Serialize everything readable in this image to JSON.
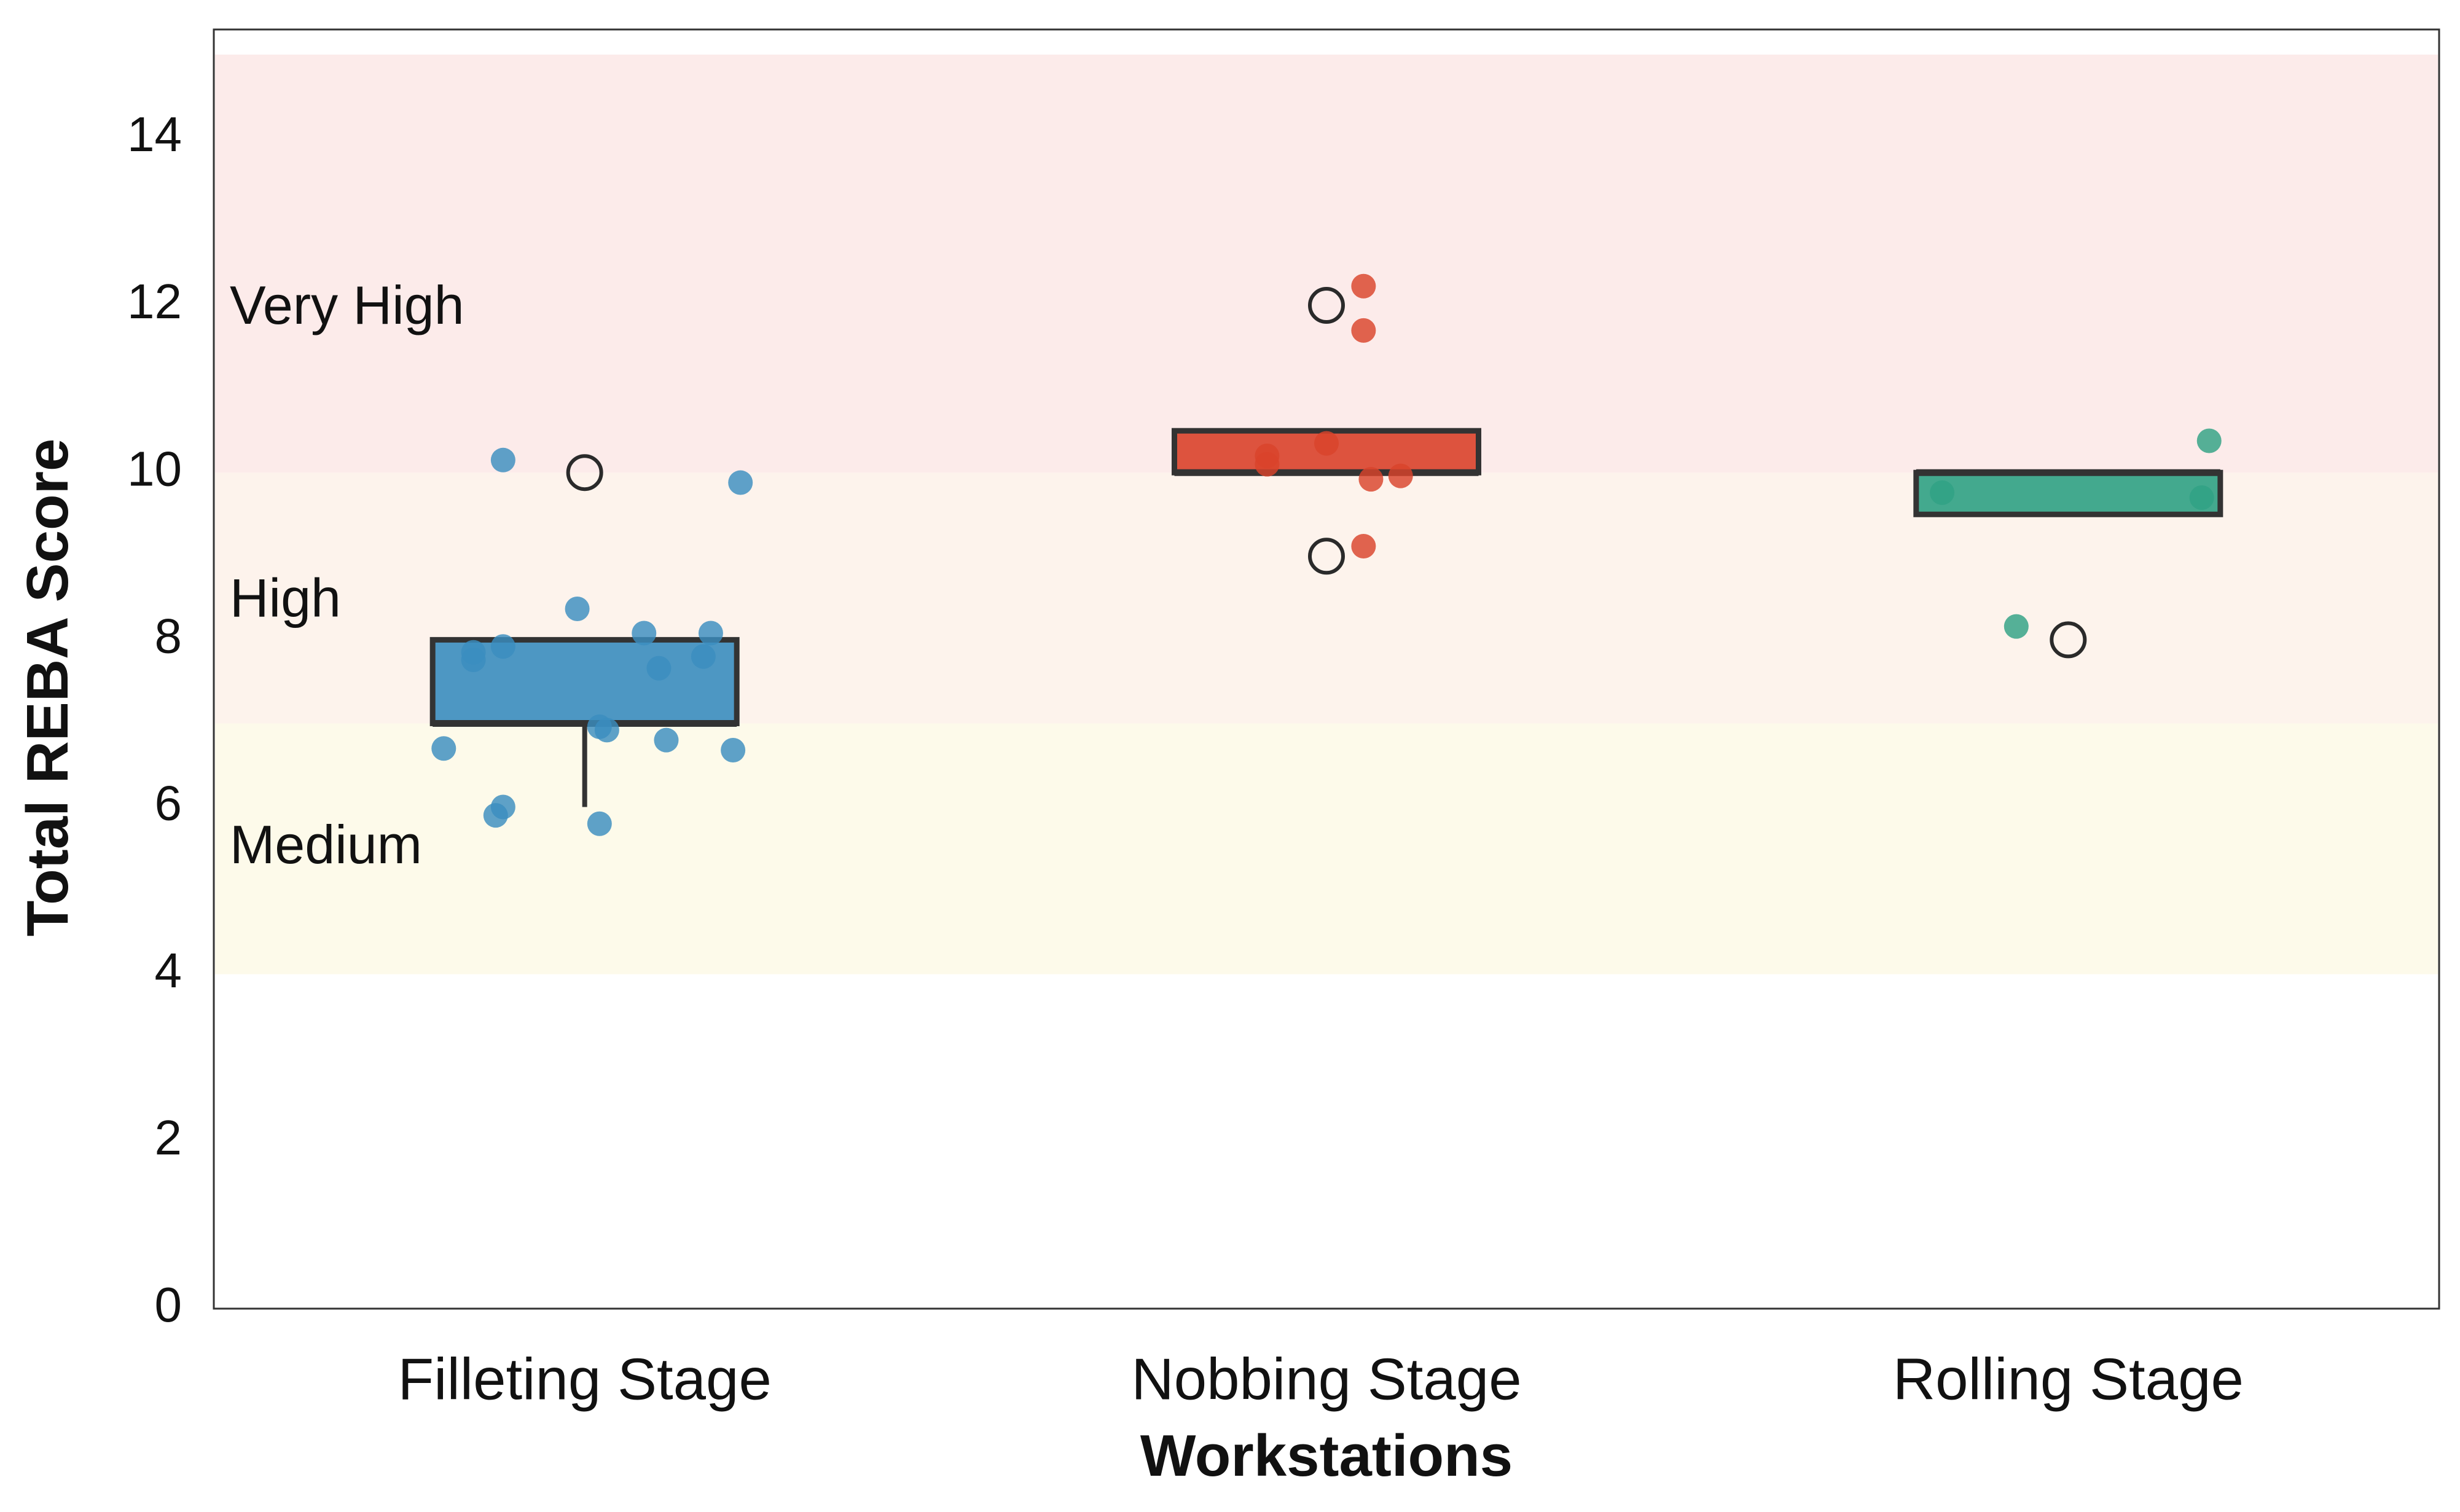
{
  "chart_data": {
    "type": "box",
    "xlabel": "Workstations",
    "ylabel": "Total REBA Score",
    "ylim": [
      0,
      15.3
    ],
    "yticks": [
      0,
      2,
      4,
      6,
      8,
      10,
      12,
      14
    ],
    "grid": false,
    "categories": [
      "Filleting Stage",
      "Nobbing Stage",
      "Rolling Stage"
    ],
    "zones": [
      {
        "label": "Medium",
        "from": 4,
        "to": 7,
        "color": "#fdfaea",
        "label_y": 5.5
      },
      {
        "label": "High",
        "from": 7,
        "to": 10,
        "color": "#fdf3ec",
        "label_y": 8.45
      },
      {
        "label": "Very High",
        "from": 10,
        "to": 15,
        "color": "#fcebea",
        "label_y": 11.95
      }
    ],
    "series": [
      {
        "category": "Filleting Stage",
        "color": "#3a8dbf",
        "box": {
          "q1": 7,
          "median": 7,
          "q3": 8,
          "whisker_low": 6,
          "whisker_high": 8
        },
        "outliers": [
          10
        ],
        "points": [
          {
            "dx": -0.11,
            "y": 10.15
          },
          {
            "dx": 0.21,
            "y": 9.88
          },
          {
            "dx": -0.01,
            "y": 8.37
          },
          {
            "dx": 0.08,
            "y": 8.08
          },
          {
            "dx": 0.17,
            "y": 8.08
          },
          {
            "dx": -0.11,
            "y": 7.92
          },
          {
            "dx": -0.15,
            "y": 7.85
          },
          {
            "dx": -0.15,
            "y": 7.76
          },
          {
            "dx": 0.16,
            "y": 7.8
          },
          {
            "dx": 0.1,
            "y": 7.66
          },
          {
            "dx": 0.02,
            "y": 6.96
          },
          {
            "dx": 0.03,
            "y": 6.92
          },
          {
            "dx": 0.11,
            "y": 6.8
          },
          {
            "dx": -0.19,
            "y": 6.7
          },
          {
            "dx": 0.2,
            "y": 6.68
          },
          {
            "dx": -0.11,
            "y": 6.0
          },
          {
            "dx": -0.12,
            "y": 5.9
          },
          {
            "dx": 0.02,
            "y": 5.8
          }
        ]
      },
      {
        "category": "Nobbing Stage",
        "color": "#d9432b",
        "box": {
          "q1": 10,
          "median": 10,
          "q3": 10.5,
          "whisker_low": 10,
          "whisker_high": 10.5
        },
        "outliers": [
          12,
          9
        ],
        "points": [
          {
            "dx": 0.05,
            "y": 12.23
          },
          {
            "dx": 0.05,
            "y": 11.7
          },
          {
            "dx": 0.0,
            "y": 10.35
          },
          {
            "dx": -0.08,
            "y": 10.2
          },
          {
            "dx": -0.08,
            "y": 10.1
          },
          {
            "dx": 0.1,
            "y": 9.96
          },
          {
            "dx": 0.06,
            "y": 9.92
          },
          {
            "dx": 0.05,
            "y": 9.12
          }
        ]
      },
      {
        "category": "Rolling Stage",
        "color": "#2fa184",
        "box": {
          "q1": 9.5,
          "median": 10,
          "q3": 10,
          "whisker_low": 9.5,
          "whisker_high": 10
        },
        "outliers": [
          8
        ],
        "points": [
          {
            "dx": 0.19,
            "y": 10.38
          },
          {
            "dx": -0.17,
            "y": 9.76
          },
          {
            "dx": 0.18,
            "y": 9.7
          },
          {
            "dx": -0.07,
            "y": 8.16
          }
        ]
      }
    ]
  }
}
